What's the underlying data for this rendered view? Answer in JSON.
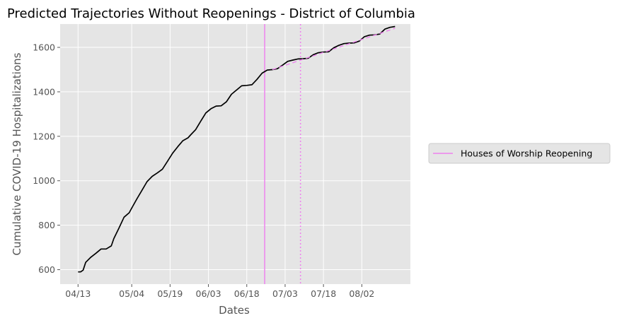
{
  "chart_data": {
    "type": "line",
    "title": "Predicted Trajectories Without Reopenings - District of Columbia",
    "xlabel": "Dates",
    "ylabel": "Cumulative COVID-19 Hospitalizations",
    "x_tick_labels": [
      "04/13",
      "05/04",
      "05/19",
      "06/03",
      "06/18",
      "07/03",
      "07/18",
      "08/02"
    ],
    "y_ticks": [
      600,
      800,
      1000,
      1200,
      1400,
      1600
    ],
    "xlim": [
      "2020-04-06",
      "2020-08-21"
    ],
    "ylim": [
      535,
      1705
    ],
    "grid": true,
    "legend": {
      "placement": "right",
      "entries": [
        {
          "label": "Houses of Worship Reopening",
          "color": "#ee82ee",
          "style": "solid"
        }
      ]
    },
    "series": [
      {
        "color": "#000000",
        "style": "solid",
        "x": [
          "2020-04-13",
          "2020-04-14",
          "2020-04-15",
          "2020-04-16",
          "2020-04-18",
          "2020-04-20",
          "2020-04-22",
          "2020-04-24",
          "2020-04-26",
          "2020-04-27",
          "2020-04-29",
          "2020-05-01",
          "2020-05-03",
          "2020-05-04",
          "2020-05-06",
          "2020-05-08",
          "2020-05-10",
          "2020-05-12",
          "2020-05-14",
          "2020-05-16",
          "2020-05-18",
          "2020-05-20",
          "2020-05-22",
          "2020-05-24",
          "2020-05-26",
          "2020-05-27",
          "2020-05-29",
          "2020-05-31",
          "2020-06-02",
          "2020-06-04",
          "2020-06-06",
          "2020-06-08",
          "2020-06-10",
          "2020-06-12",
          "2020-06-14",
          "2020-06-16",
          "2020-06-18",
          "2020-06-20",
          "2020-06-22",
          "2020-06-24",
          "2020-06-26",
          "2020-06-28",
          "2020-06-30",
          "2020-07-02",
          "2020-07-04",
          "2020-07-06",
          "2020-07-08",
          "2020-07-10",
          "2020-07-12",
          "2020-07-14",
          "2020-07-16",
          "2020-07-18",
          "2020-07-20",
          "2020-07-22",
          "2020-07-24",
          "2020-07-26",
          "2020-07-28",
          "2020-07-30",
          "2020-08-01",
          "2020-08-03",
          "2020-08-05",
          "2020-08-07",
          "2020-08-09",
          "2020-08-11",
          "2020-08-13",
          "2020-08-15"
        ],
        "y": [
          590,
          590,
          598,
          633,
          656,
          674,
          693,
          693,
          707,
          740,
          787,
          836,
          856,
          877,
          918,
          957,
          996,
          1020,
          1035,
          1052,
          1088,
          1124,
          1153,
          1180,
          1193,
          1206,
          1230,
          1268,
          1305,
          1324,
          1336,
          1337,
          1355,
          1389,
          1408,
          1427,
          1429,
          1432,
          1456,
          1484,
          1498,
          1500,
          1504,
          1520,
          1537,
          1543,
          1548,
          1549,
          1551,
          1567,
          1576,
          1579,
          1580,
          1598,
          1609,
          1617,
          1619,
          1620,
          1628,
          1648,
          1655,
          1656,
          1660,
          1682,
          1690,
          1694
        ]
      },
      {
        "color": "#ee82ee",
        "style": "dashed",
        "x": [
          "2020-06-28",
          "2020-08-15"
        ],
        "y": [
          1500,
          1686
        ]
      }
    ],
    "vertical_lines": [
      {
        "x": "2020-06-25",
        "color": "#ee82ee",
        "style": "solid"
      },
      {
        "x": "2020-07-09",
        "color": "#ee82ee",
        "style": "dotted"
      }
    ]
  }
}
